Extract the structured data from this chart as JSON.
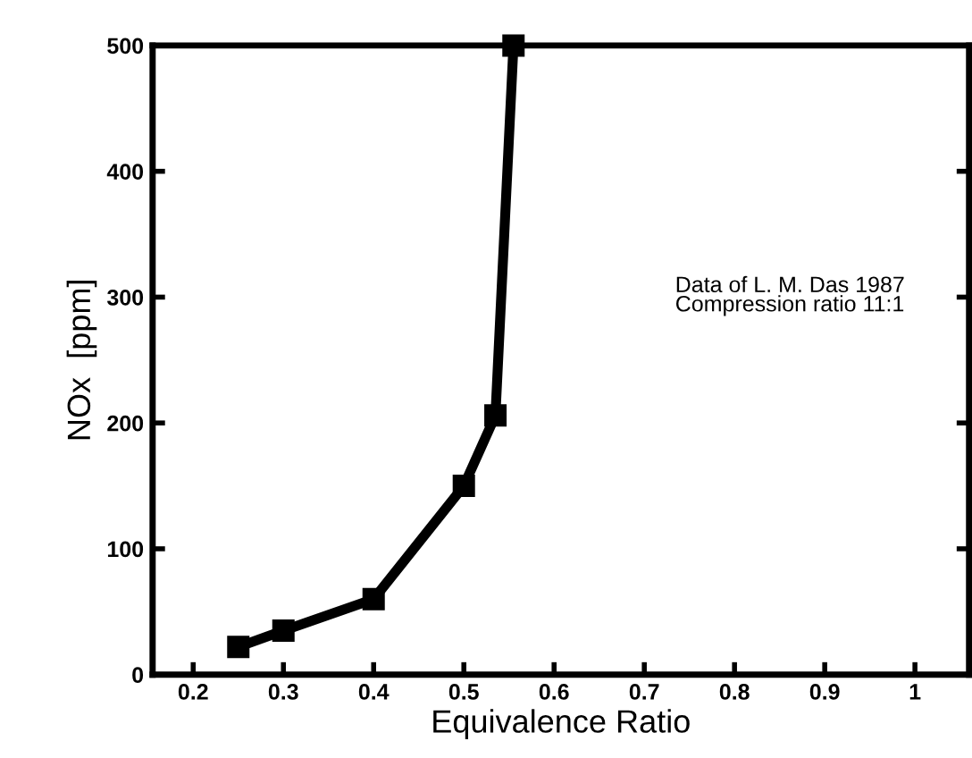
{
  "chart_data": {
    "type": "line",
    "xlabel": "Equivalence Ratio",
    "ylabel": "NOx  [ppm]",
    "annotations": [
      "Data of L. M. Das 1987\nCompression ratio 11:1"
    ],
    "x": [
      0.25,
      0.3,
      0.4,
      0.5,
      0.535,
      0.555
    ],
    "series": [
      {
        "color": "#000000",
        "values": [
          22,
          35,
          60,
          150,
          206,
          500
        ]
      }
    ],
    "marker": "square",
    "line_style": "solid",
    "xlim": [
      0.155,
      1.06
    ],
    "xticks": [
      0.2,
      0.3,
      0.4,
      0.5,
      0.6,
      0.7,
      0.8,
      0.9,
      1
    ],
    "ylim": [
      0,
      500
    ],
    "yticks": [
      0,
      100,
      200,
      300,
      400,
      500
    ],
    "grid": false,
    "legend": false
  }
}
